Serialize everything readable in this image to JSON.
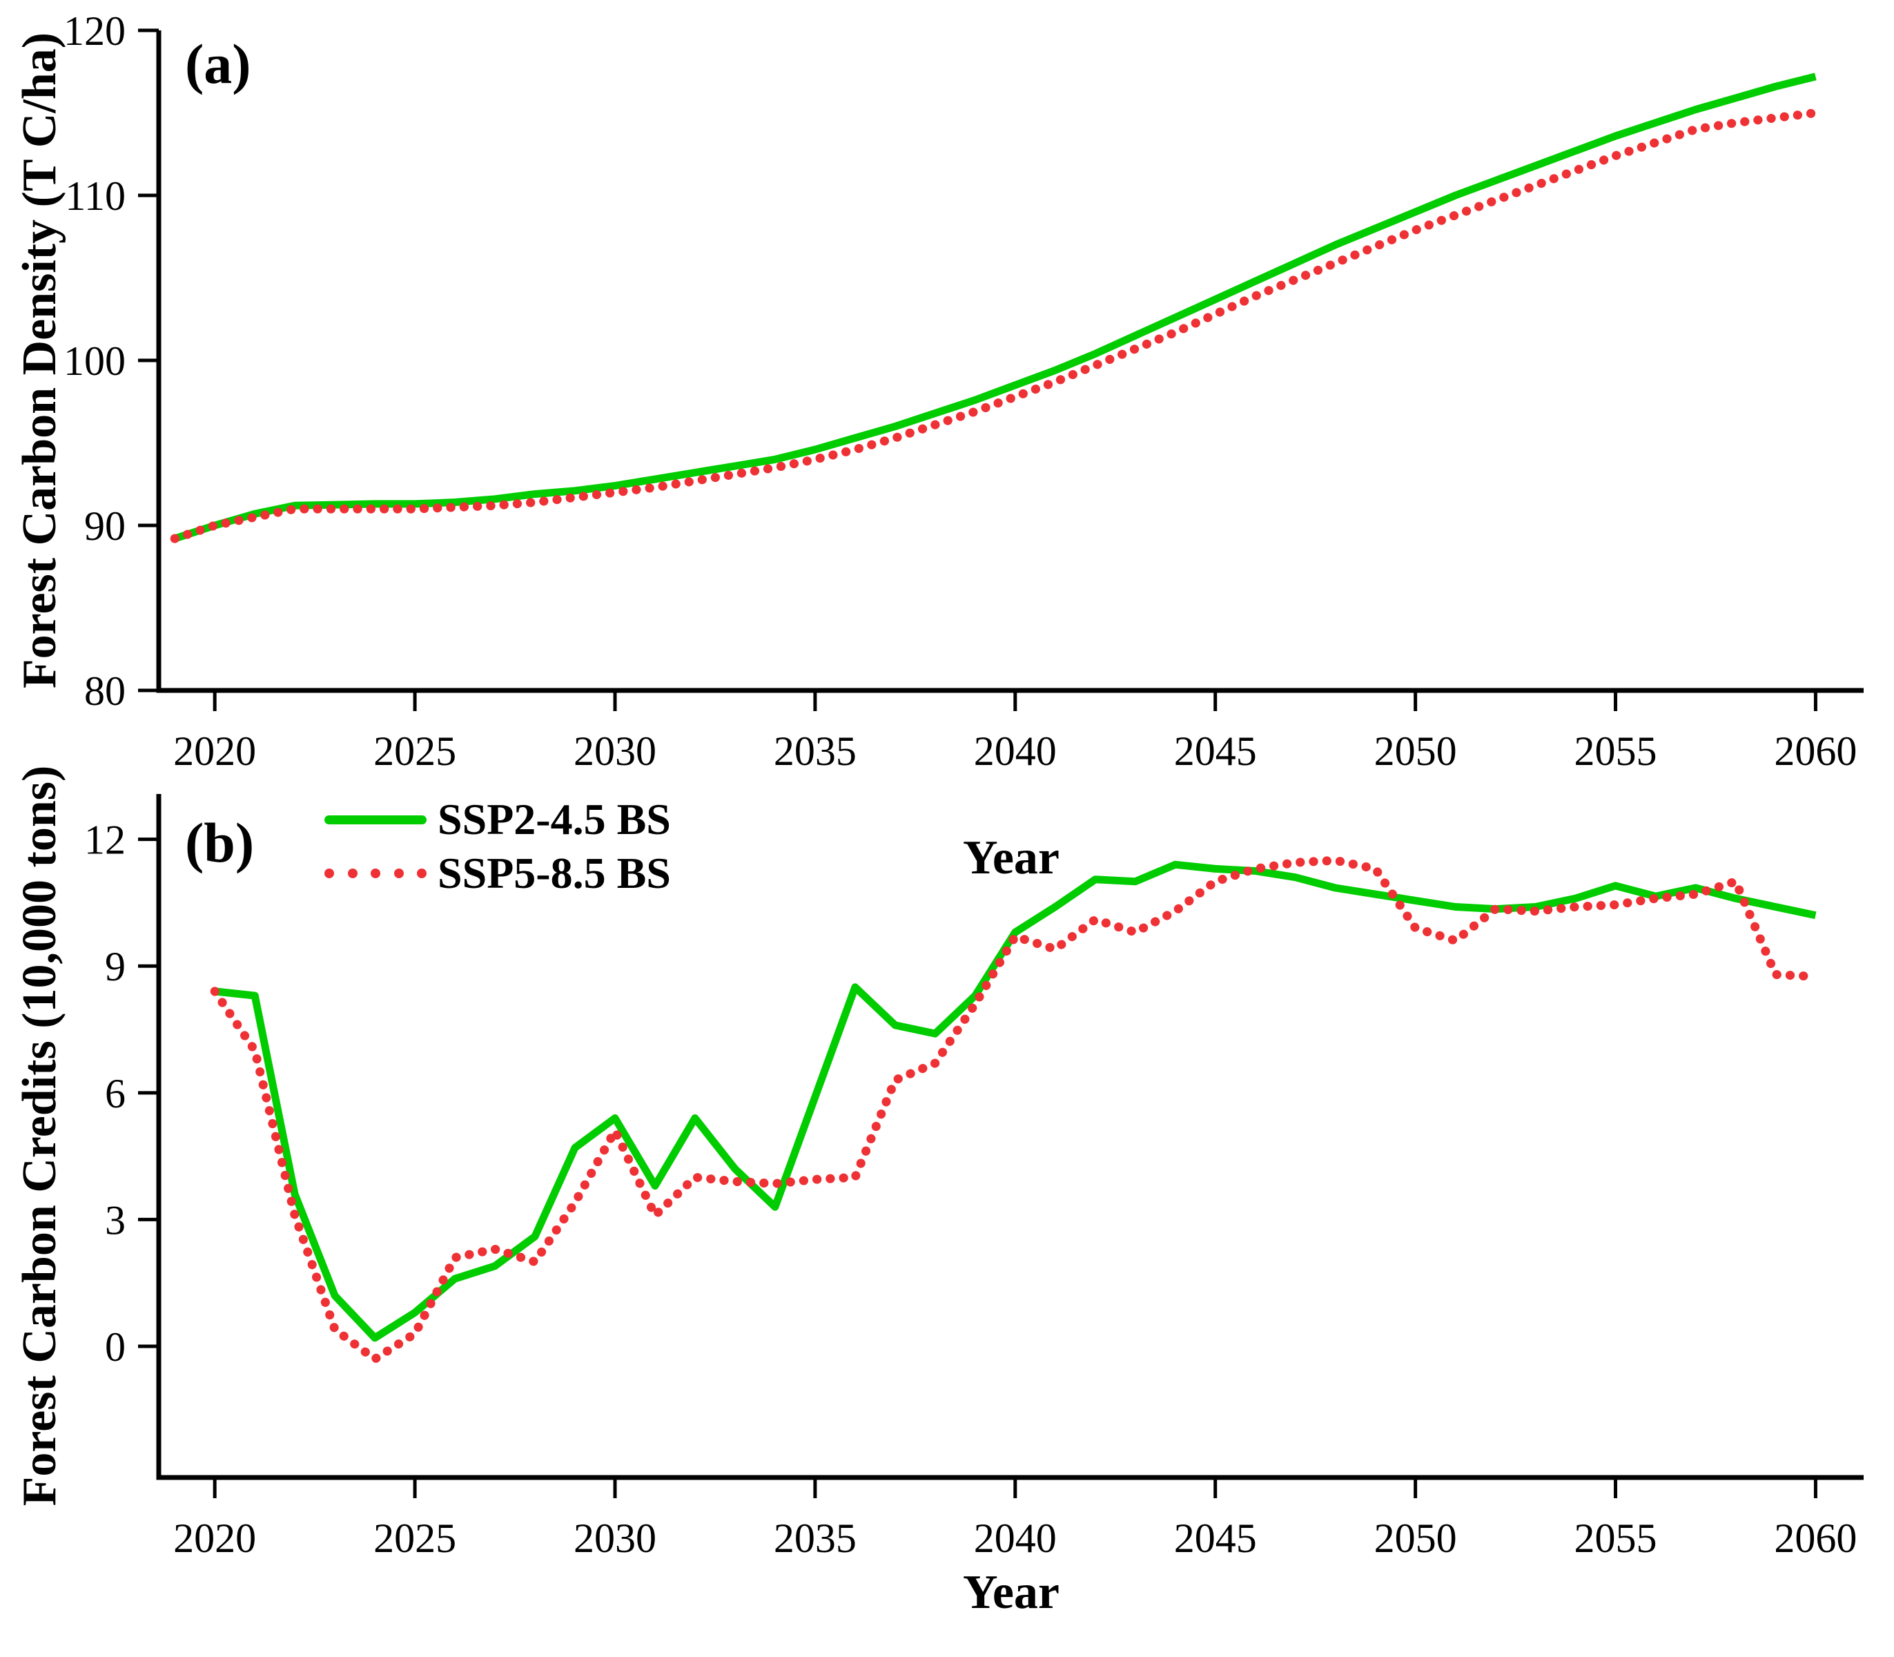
{
  "figure": {
    "background": "#ffffff",
    "axis_color": "#000000"
  },
  "colors": {
    "ssp2_green": "#00CC00",
    "ssp5_red": "#EE3134",
    "axis": "#000000"
  },
  "legend": {
    "position": "top-left-inside-panel-b",
    "items": [
      {
        "label": "SSP2-4.5 BS",
        "color": "#00CC00",
        "style": "solid"
      },
      {
        "label": "SSP5-8.5 BS",
        "color": "#EE3134",
        "style": "dotted"
      }
    ]
  },
  "chart_data": [
    {
      "id": "a",
      "type": "line",
      "panel_label": "(a)",
      "xlabel": "Year",
      "ylabel": "Forest Carbon Density (T C/ha)",
      "grid": false,
      "xticks": [
        2020,
        2025,
        2030,
        2035,
        2040,
        2045,
        2050,
        2055,
        2060
      ],
      "yticks": [
        80,
        90,
        100,
        110,
        120
      ],
      "xlim": [
        2019,
        2060
      ],
      "ylim": [
        80,
        120
      ],
      "x": [
        2019,
        2020,
        2021,
        2022,
        2023,
        2024,
        2025,
        2026,
        2027,
        2028,
        2029,
        2030,
        2031,
        2032,
        2033,
        2034,
        2035,
        2036,
        2037,
        2038,
        2039,
        2040,
        2041,
        2042,
        2043,
        2044,
        2045,
        2046,
        2047,
        2048,
        2049,
        2050,
        2051,
        2052,
        2053,
        2054,
        2055,
        2056,
        2057,
        2058,
        2059,
        2060
      ],
      "series": [
        {
          "name": "SSP2-4.5 BS",
          "color": "#00CC00",
          "style": "solid",
          "values": [
            89.2,
            90.0,
            90.7,
            91.2,
            91.25,
            91.3,
            91.3,
            91.4,
            91.6,
            91.9,
            92.1,
            92.4,
            92.8,
            93.2,
            93.6,
            94.0,
            94.6,
            95.3,
            96.0,
            96.8,
            97.6,
            98.5,
            99.4,
            100.4,
            101.5,
            102.6,
            103.7,
            104.8,
            105.9,
            107.0,
            108.0,
            109.0,
            110.0,
            110.9,
            111.8,
            112.7,
            113.6,
            114.4,
            115.2,
            115.9,
            116.6,
            117.2
          ]
        },
        {
          "name": "SSP5-8.5 BS",
          "color": "#EE3134",
          "style": "dotted",
          "values": [
            89.2,
            90.0,
            90.5,
            91.0,
            91.0,
            91.0,
            91.0,
            91.1,
            91.2,
            91.4,
            91.7,
            92.0,
            92.3,
            92.7,
            93.1,
            93.5,
            94.0,
            94.6,
            95.3,
            96.1,
            96.9,
            97.8,
            98.7,
            99.7,
            100.7,
            101.7,
            102.8,
            103.9,
            104.9,
            105.9,
            106.9,
            107.9,
            108.8,
            109.7,
            110.6,
            111.5,
            112.4,
            113.2,
            114.0,
            114.4,
            114.7,
            115.0
          ]
        }
      ]
    },
    {
      "id": "b",
      "type": "line",
      "panel_label": "(b)",
      "xlabel": "Year",
      "ylabel": "Forest Carbon Credits (10,000 tons)",
      "grid": false,
      "xticks": [
        2020,
        2025,
        2030,
        2035,
        2040,
        2045,
        2050,
        2055,
        2060
      ],
      "yticks": [
        0,
        3,
        6,
        9,
        12
      ],
      "xlim": [
        2020,
        2060
      ],
      "ylim": [
        0,
        12
      ],
      "x": [
        2020,
        2021,
        2022,
        2023,
        2024,
        2025,
        2026,
        2027,
        2028,
        2029,
        2030,
        2031,
        2032,
        2033,
        2034,
        2035,
        2036,
        2037,
        2038,
        2039,
        2040,
        2041,
        2042,
        2043,
        2044,
        2045,
        2046,
        2047,
        2048,
        2049,
        2050,
        2051,
        2052,
        2053,
        2054,
        2055,
        2056,
        2057,
        2058,
        2059,
        2060
      ],
      "series": [
        {
          "name": "SSP2-4.5 BS",
          "color": "#00CC00",
          "style": "solid",
          "values": [
            8.4,
            8.3,
            3.6,
            1.2,
            0.2,
            0.8,
            1.6,
            1.9,
            2.6,
            4.7,
            5.4,
            3.8,
            5.4,
            4.2,
            3.3,
            5.9,
            8.5,
            7.6,
            7.4,
            8.3,
            9.8,
            10.4,
            11.05,
            11.0,
            11.4,
            11.3,
            11.25,
            11.1,
            10.85,
            10.7,
            10.55,
            10.4,
            10.35,
            10.4,
            10.6,
            10.9,
            10.65,
            10.85,
            10.6,
            10.4,
            10.2
          ]
        },
        {
          "name": "SSP5-8.5 BS",
          "color": "#EE3134",
          "style": "dotted",
          "values": [
            8.4,
            7.0,
            3.1,
            0.4,
            -0.3,
            0.3,
            2.1,
            2.3,
            2.0,
            3.4,
            5.1,
            3.1,
            4.0,
            3.9,
            3.85,
            3.95,
            4.0,
            6.3,
            6.7,
            8.1,
            9.7,
            9.4,
            10.1,
            9.8,
            10.3,
            11.0,
            11.3,
            11.45,
            11.5,
            11.3,
            9.9,
            9.6,
            10.35,
            10.3,
            10.4,
            10.45,
            10.6,
            10.7,
            11.0,
            8.8,
            8.75
          ]
        }
      ]
    }
  ]
}
